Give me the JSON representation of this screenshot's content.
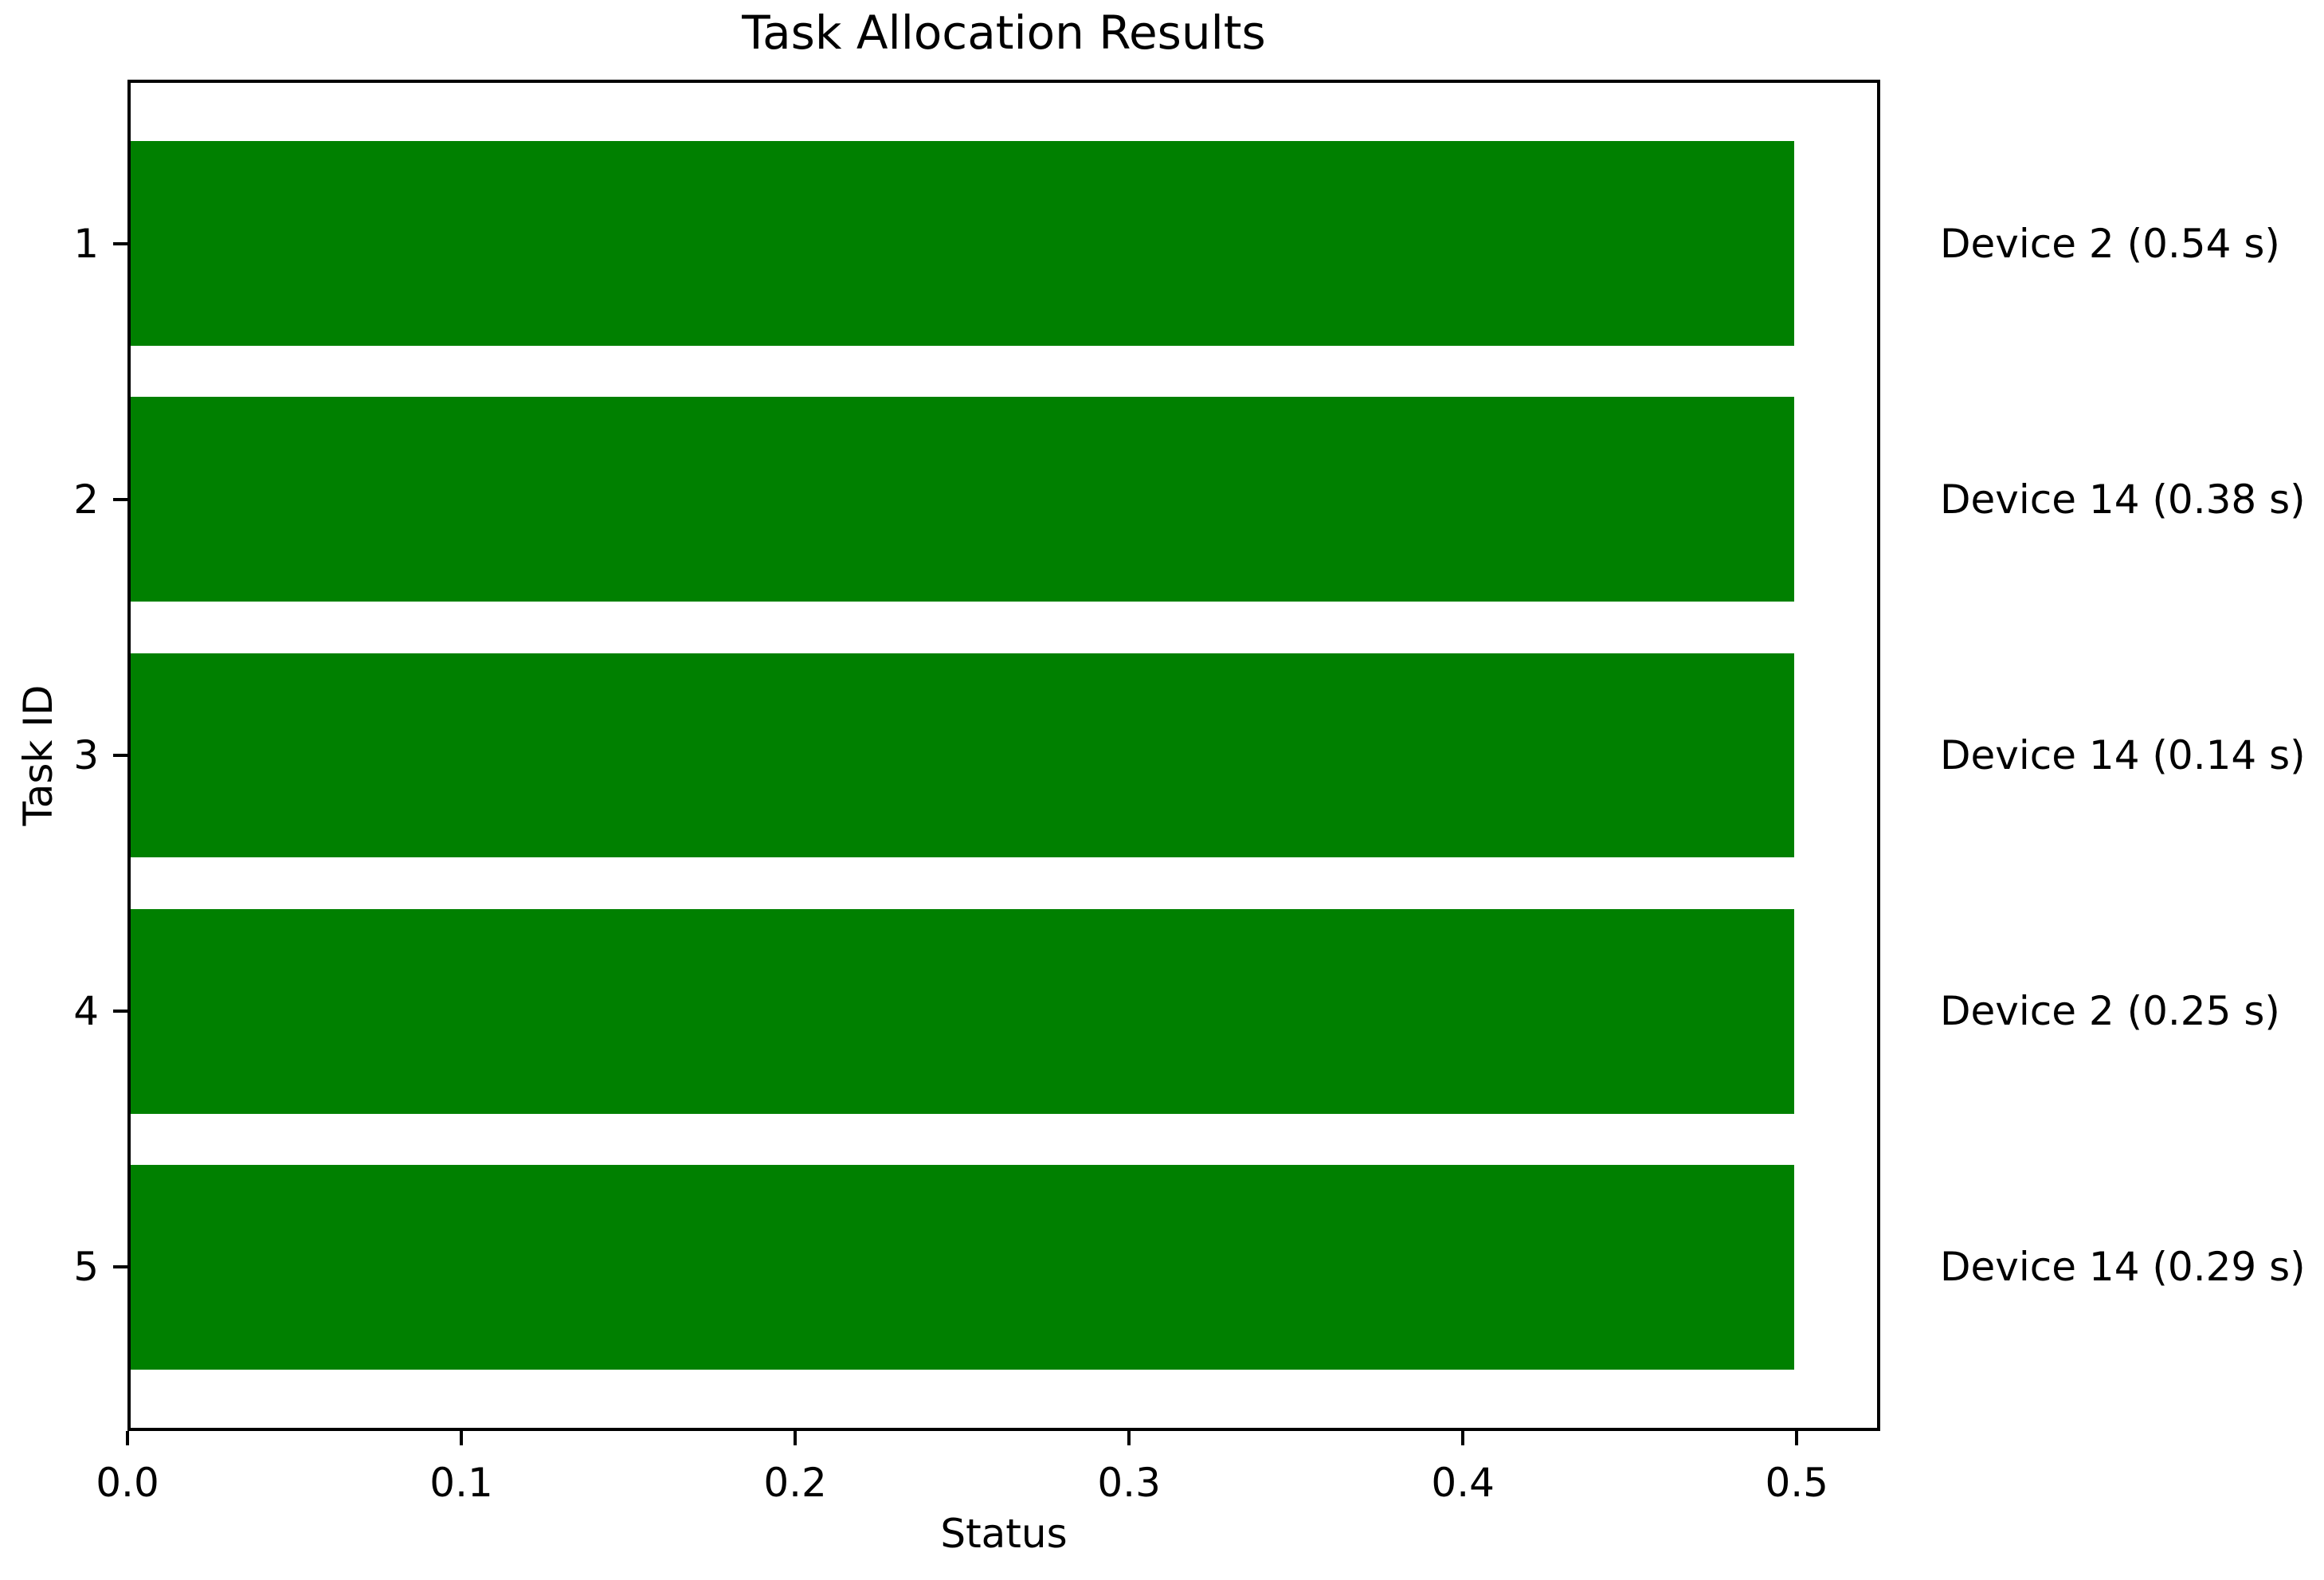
{
  "chart_data": {
    "type": "bar",
    "orientation": "horizontal",
    "title": "Task Allocation Results",
    "xlabel": "Status",
    "ylabel": "Task ID",
    "categories": [
      "1",
      "2",
      "3",
      "4",
      "5"
    ],
    "values": [
      0.5,
      0.5,
      0.5,
      0.5,
      0.5
    ],
    "bar_annotations": [
      "Device 2 (0.54 s)",
      "Device 14 (0.38 s)",
      "Device 14 (0.14 s)",
      "Device 2 (0.25 s)",
      "Device 14 (0.29 s)"
    ],
    "x_tick_labels": [
      "0.0",
      "0.1",
      "0.2",
      "0.3",
      "0.4",
      "0.5"
    ],
    "x_tick_values": [
      0.0,
      0.1,
      0.2,
      0.3,
      0.4,
      0.5
    ],
    "xlim": [
      0.0,
      0.525
    ],
    "bar_color": "#008000",
    "axis_color": "#000000",
    "grid": false,
    "legend": null
  }
}
